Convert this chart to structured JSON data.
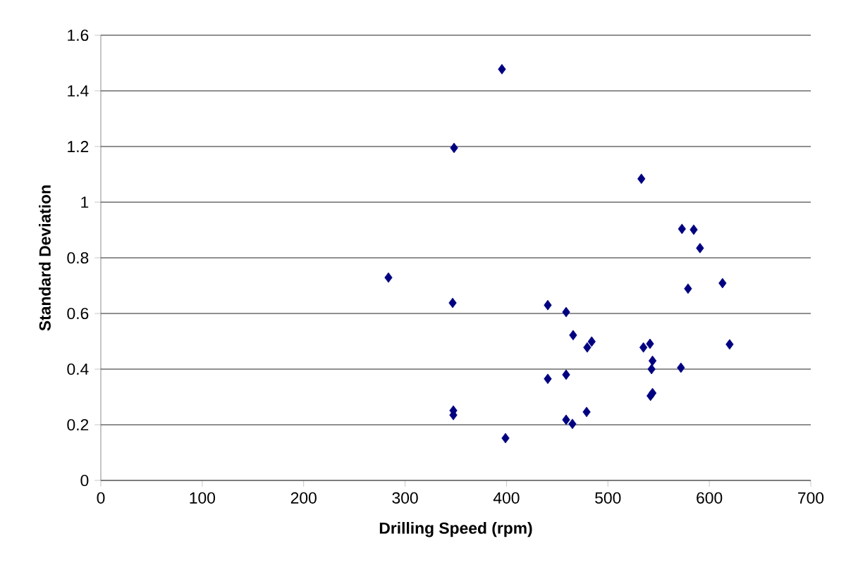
{
  "chart_data": {
    "type": "scatter",
    "xlabel": "Drilling Speed (rpm)",
    "ylabel": "Standard Deviation",
    "x": [
      283.6,
      348.3,
      395.5,
      346.9,
      347.6,
      347.6,
      399,
      440.7,
      440.7,
      458.8,
      458.8,
      458.8,
      465,
      465.7,
      479,
      479.6,
      484,
      533,
      535,
      541.5,
      544,
      543,
      542,
      544,
      572,
      573,
      584.6,
      590.8,
      579,
      613,
      620
    ],
    "values": [
      0.729,
      1.195,
      1.478,
      0.638,
      0.251,
      0.235,
      0.152,
      0.63,
      0.365,
      0.605,
      0.38,
      0.218,
      0.203,
      0.522,
      0.246,
      0.478,
      0.499,
      1.084,
      0.478,
      0.491,
      0.43,
      0.4,
      0.304,
      0.314,
      0.405,
      0.904,
      0.901,
      0.835,
      0.689,
      0.709,
      0.489
    ],
    "color": "#000080",
    "marker": "diamond",
    "grid": "y",
    "xlim": [
      0,
      700
    ],
    "xticks": [
      0,
      100,
      200,
      300,
      400,
      500,
      600,
      700
    ],
    "ylim": [
      0,
      1.6
    ],
    "yticks": [
      0,
      0.2,
      0.4,
      0.6,
      0.8,
      1,
      1.2,
      1.4,
      1.6
    ]
  }
}
